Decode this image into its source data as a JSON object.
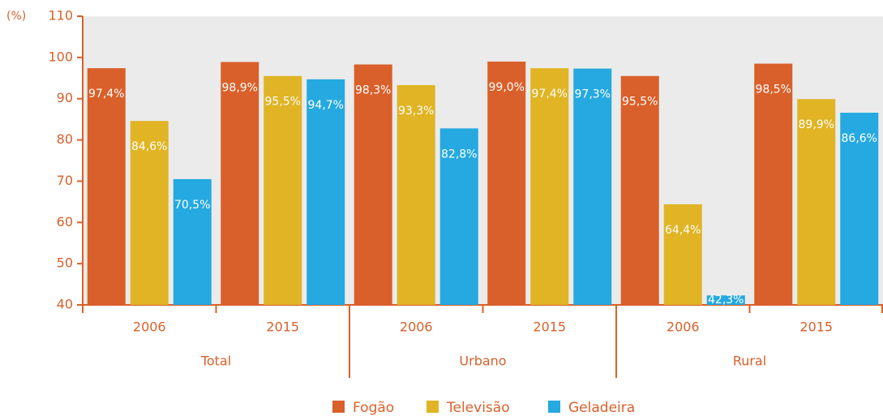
{
  "chart_data": {
    "type": "bar",
    "ylabel": "(%)",
    "categories": [
      "2006",
      "2015",
      "2006",
      "2015",
      "2006",
      "2015"
    ],
    "groups": [
      "Total",
      "Urbano",
      "Rural"
    ],
    "series": [
      {
        "name": "Fogão",
        "color": "#d9602a",
        "values": [
          97.4,
          98.9,
          98.3,
          99.0,
          95.5,
          98.5
        ],
        "value_labels": [
          "97,4%",
          "98,9%",
          "98,3%",
          "99,0%",
          "95,5%",
          "98,5%"
        ]
      },
      {
        "name": "Televisão",
        "color": "#e0b424",
        "values": [
          84.6,
          95.5,
          93.3,
          97.4,
          64.4,
          89.9
        ],
        "value_labels": [
          "84,6%",
          "95,5%",
          "93,3%",
          "97,4%",
          "64,4%",
          "89,9%"
        ]
      },
      {
        "name": "Geladeira",
        "color": "#25a9e0",
        "values": [
          70.5,
          94.7,
          82.8,
          97.3,
          42.3,
          86.6
        ],
        "value_labels": [
          "70,5%",
          "94,7%",
          "82,8%",
          "97,3%",
          "42,3%",
          "86,6%"
        ]
      }
    ],
    "ylim": [
      40,
      110
    ],
    "yticks": [
      40,
      50,
      60,
      70,
      80,
      90,
      100,
      110
    ]
  }
}
